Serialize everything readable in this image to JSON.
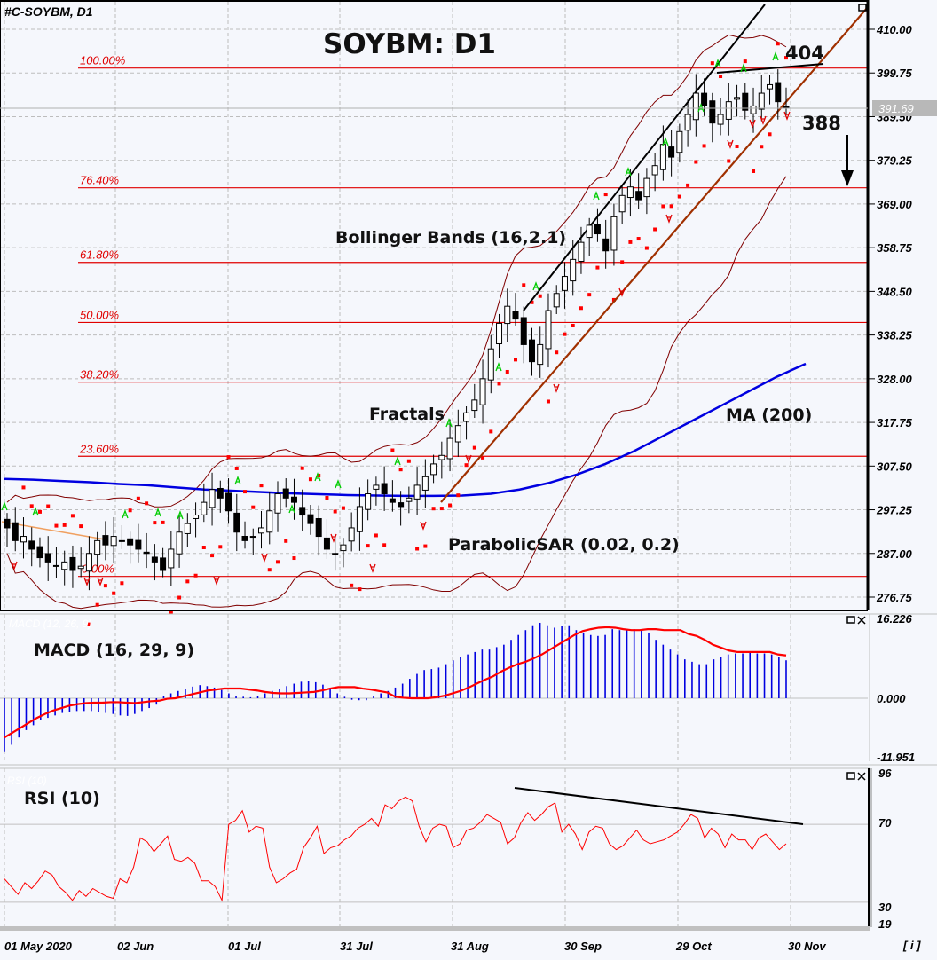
{
  "header": {
    "symbol_label": "#C-SOYBM, D1",
    "title": "SOYBM: D1"
  },
  "annotations": {
    "bollinger": "Bollinger Bands (16,2.1)",
    "fractals": "Fractals",
    "ma": "MA (200)",
    "psar": "ParabolicSAR (0.02, 0.2)",
    "level_404": "404",
    "level_388": "388",
    "macd_title": "MACD (16, 29, 9)",
    "macd_ghost": "MACD (12, 26, 9)",
    "rsi_title": "RSI (10)",
    "rsi_ghost": "RSI (10)"
  },
  "price_axis": {
    "ticks": [
      "410.00",
      "399.75",
      "389.50",
      "379.25",
      "369.00",
      "358.75",
      "348.50",
      "338.25",
      "328.00",
      "317.75",
      "307.50",
      "297.25",
      "287.00",
      "276.75"
    ],
    "current_price": "391.69"
  },
  "macd_axis": {
    "ticks": [
      "16.226",
      "0.000",
      "-11.951"
    ]
  },
  "rsi_axis": {
    "ticks": [
      "96",
      "70",
      "30",
      "19"
    ]
  },
  "time_axis": {
    "labels": [
      "01 May 2020",
      "02 Jun",
      "01 Jul",
      "31 Jul",
      "31 Aug",
      "30 Sep",
      "29 Oct",
      "30 Nov"
    ]
  },
  "info_button": "[ i ]",
  "fib_levels": [
    {
      "label": "100.00%",
      "price": 400.9
    },
    {
      "label": "76.40%",
      "price": 372.8
    },
    {
      "label": "61.80%",
      "price": 355.3
    },
    {
      "label": "50.00%",
      "price": 341.2
    },
    {
      "label": "38.20%",
      "price": 327.2
    },
    {
      "label": "23.60%",
      "price": 309.8
    },
    {
      "label": "0.00%",
      "price": 281.6
    }
  ],
  "colors": {
    "background": "#f5f7fc",
    "fib": "#e00000",
    "ma": "#0000e0",
    "bollinger": "#800000",
    "psar": "#ff0000",
    "channel": "#a03000",
    "fractal_up": "#00cc00",
    "fractal_down": "#e00000",
    "macd_hist": "#0000e0",
    "macd_signal": "#ff0000",
    "rsi": "#ff0000",
    "price_tag_bg": "#b8b8b8"
  },
  "chart_data": [
    {
      "type": "candlestick",
      "title": "SOYBM: D1",
      "xlabel": "",
      "ylabel": "Price",
      "ylim": [
        276.75,
        414
      ],
      "x_tick_labels": [
        "01 May 2020",
        "02 Jun",
        "01 Jul",
        "31 Jul",
        "31 Aug",
        "30 Sep",
        "29 Oct",
        "30 Nov"
      ],
      "close_series": [
        293,
        290,
        291,
        288,
        286,
        285,
        284,
        285,
        283,
        284,
        287,
        290,
        289,
        291,
        290,
        289,
        288,
        287,
        285,
        283,
        288,
        292,
        294,
        296,
        299,
        302,
        300,
        297,
        292,
        290,
        291,
        293,
        297,
        301,
        300,
        299,
        296,
        294,
        291,
        288,
        287,
        289,
        293,
        298,
        301,
        303,
        301,
        299,
        298,
        300,
        303,
        305,
        308,
        310,
        314,
        317,
        320,
        323,
        328,
        335,
        341,
        345,
        342,
        336,
        332,
        336,
        344,
        348,
        352,
        356,
        360,
        364,
        362,
        358,
        366,
        371,
        373,
        370,
        375,
        378,
        383,
        380,
        386,
        390,
        395,
        392,
        388,
        390,
        393,
        394,
        391,
        392,
        395,
        397,
        393,
        391.69
      ],
      "last_close": 391.69,
      "levels": {
        "resistance": 404,
        "target": 388
      },
      "overlays": {
        "ma200": [
          304.5,
          304.3,
          304,
          303.7,
          303.3,
          303,
          302.5,
          302,
          301.7,
          301.4,
          301.1,
          300.9,
          300.7,
          300.6,
          300.5,
          300.5,
          300.6,
          301,
          302,
          303.5,
          305.5,
          308,
          311,
          314.5,
          318,
          321.5,
          325,
          328.5,
          331.5
        ],
        "psar_note": "dots below price during uptrend, above during downtrend",
        "bollinger": "16-period, 2.1 std dev"
      }
    },
    {
      "type": "bar",
      "title": "MACD (16, 29, 9)",
      "ylim": [
        -11.951,
        16.226
      ],
      "histogram": [
        -11,
        -9.5,
        -8,
        -6.5,
        -5.5,
        -4.5,
        -4,
        -3.5,
        -3,
        -2.8,
        -2.6,
        -2.6,
        -2.6,
        -2.8,
        -3,
        -3.2,
        -3.5,
        -3.6,
        -3.2,
        -2.6,
        -2,
        -1.3,
        0.5,
        1,
        1.5,
        2,
        2.4,
        2.7,
        2.5,
        2.2,
        1.7,
        1,
        0.5,
        0.3,
        0.2,
        0.4,
        1,
        1.5,
        2,
        2.5,
        3,
        3.4,
        3.6,
        3.3,
        2.8,
        2,
        1,
        0.3,
        -0.3,
        -0.4,
        -0.4,
        0.5,
        1,
        1.5,
        2.2,
        3,
        4,
        5,
        5.8,
        6,
        6.3,
        7,
        7.8,
        8.5,
        9,
        9.5,
        10,
        10,
        10.5,
        11,
        12,
        13,
        14,
        15,
        15.5,
        15,
        14.5,
        14.8,
        15,
        14,
        13.5,
        13,
        12.8,
        13,
        14.2,
        14,
        14.3,
        14.2,
        14,
        13.5,
        12,
        11,
        10,
        9,
        8,
        7.5,
        7,
        7,
        8,
        8.5,
        9,
        9.2,
        9.2,
        9.3,
        9.2,
        9.2,
        9,
        8.5,
        7.8
      ],
      "signal": [
        -8,
        -7,
        -6,
        -5,
        -4,
        -3.2,
        -2.5,
        -2,
        -1.5,
        -1.2,
        -1,
        -0.9,
        -0.9,
        -0.8,
        -0.8,
        -0.9,
        -1,
        -0.8,
        -0.6,
        -0.5,
        -0.1,
        0,
        0.4,
        0.8,
        1.2,
        1.6,
        1.8,
        2,
        2,
        2,
        1.8,
        1.6,
        1.3,
        1.1,
        1,
        1,
        1.1,
        1.2,
        1.3,
        1.6,
        2,
        2.3,
        2.3,
        2.3,
        2,
        1.8,
        1.5,
        1.2,
        0.3,
        0.1,
        0,
        0,
        0,
        0.2,
        0.5,
        1,
        1.5,
        2.2,
        3,
        3.8,
        4.5,
        5.5,
        6.3,
        7,
        7.5,
        8.2,
        9,
        10,
        11,
        12,
        13,
        13.8,
        14.2,
        14.5,
        14.6,
        14.5,
        14.2,
        14,
        14,
        14.2,
        14.2,
        14,
        14,
        14,
        13.2,
        12.8,
        12,
        11,
        10.4,
        9.8,
        9.5,
        9.5,
        9.5,
        9.5,
        9.5,
        9,
        8.8
      ]
    },
    {
      "type": "line",
      "title": "RSI (10)",
      "ylim": [
        19,
        96
      ],
      "reference_lines": [
        70,
        30
      ],
      "values": [
        42,
        38,
        34,
        40,
        37,
        41,
        46,
        44,
        38,
        35,
        31,
        36,
        33,
        37,
        35,
        33,
        32,
        42,
        40,
        48,
        63,
        61,
        56,
        60,
        64,
        52,
        51,
        53,
        50,
        41,
        41,
        38,
        31,
        70,
        72,
        77,
        66,
        69,
        68,
        48,
        40,
        42,
        45,
        47,
        58,
        63,
        69,
        55,
        58,
        59,
        62,
        64,
        68,
        70,
        73,
        69,
        80,
        78,
        82,
        84,
        82,
        69,
        61,
        68,
        70,
        69,
        58,
        60,
        67,
        68,
        71,
        75,
        73,
        71,
        60,
        63,
        71,
        76,
        72,
        75,
        79,
        81,
        66,
        70,
        65,
        57,
        66,
        69,
        68,
        60,
        57,
        59,
        63,
        67,
        62,
        60,
        61,
        62,
        64,
        66,
        70,
        75,
        73,
        63,
        68,
        65,
        58,
        65,
        62,
        62,
        57,
        63,
        65,
        61,
        57,
        60
      ]
    }
  ]
}
